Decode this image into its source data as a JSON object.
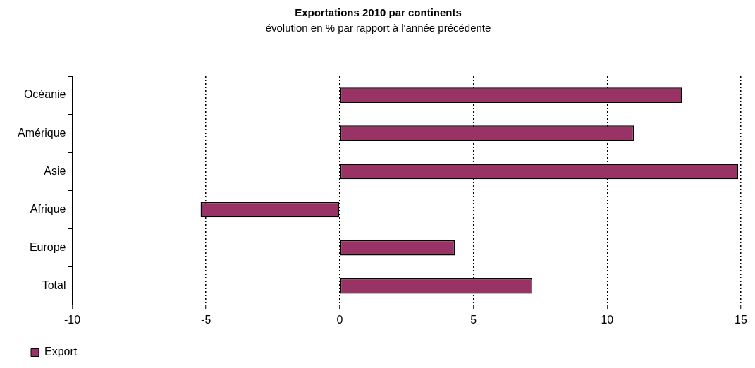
{
  "chart_data": {
    "type": "bar",
    "orientation": "horizontal",
    "title": "Exportations 2010 par continents",
    "subtitle": "évolution en % par rapport à l'année précédente",
    "categories": [
      "Océanie",
      "Amérique",
      "Asie",
      "Afrique",
      "Europe",
      "Total"
    ],
    "series": [
      {
        "name": "Export",
        "color": "#993366",
        "values": [
          12.8,
          11.0,
          14.9,
          -5.2,
          4.3,
          7.2
        ]
      }
    ],
    "xlim": [
      -10,
      15
    ],
    "xticks": [
      -10,
      -5,
      0,
      5,
      10,
      15
    ],
    "grid": "x",
    "legend": "bottom left"
  }
}
